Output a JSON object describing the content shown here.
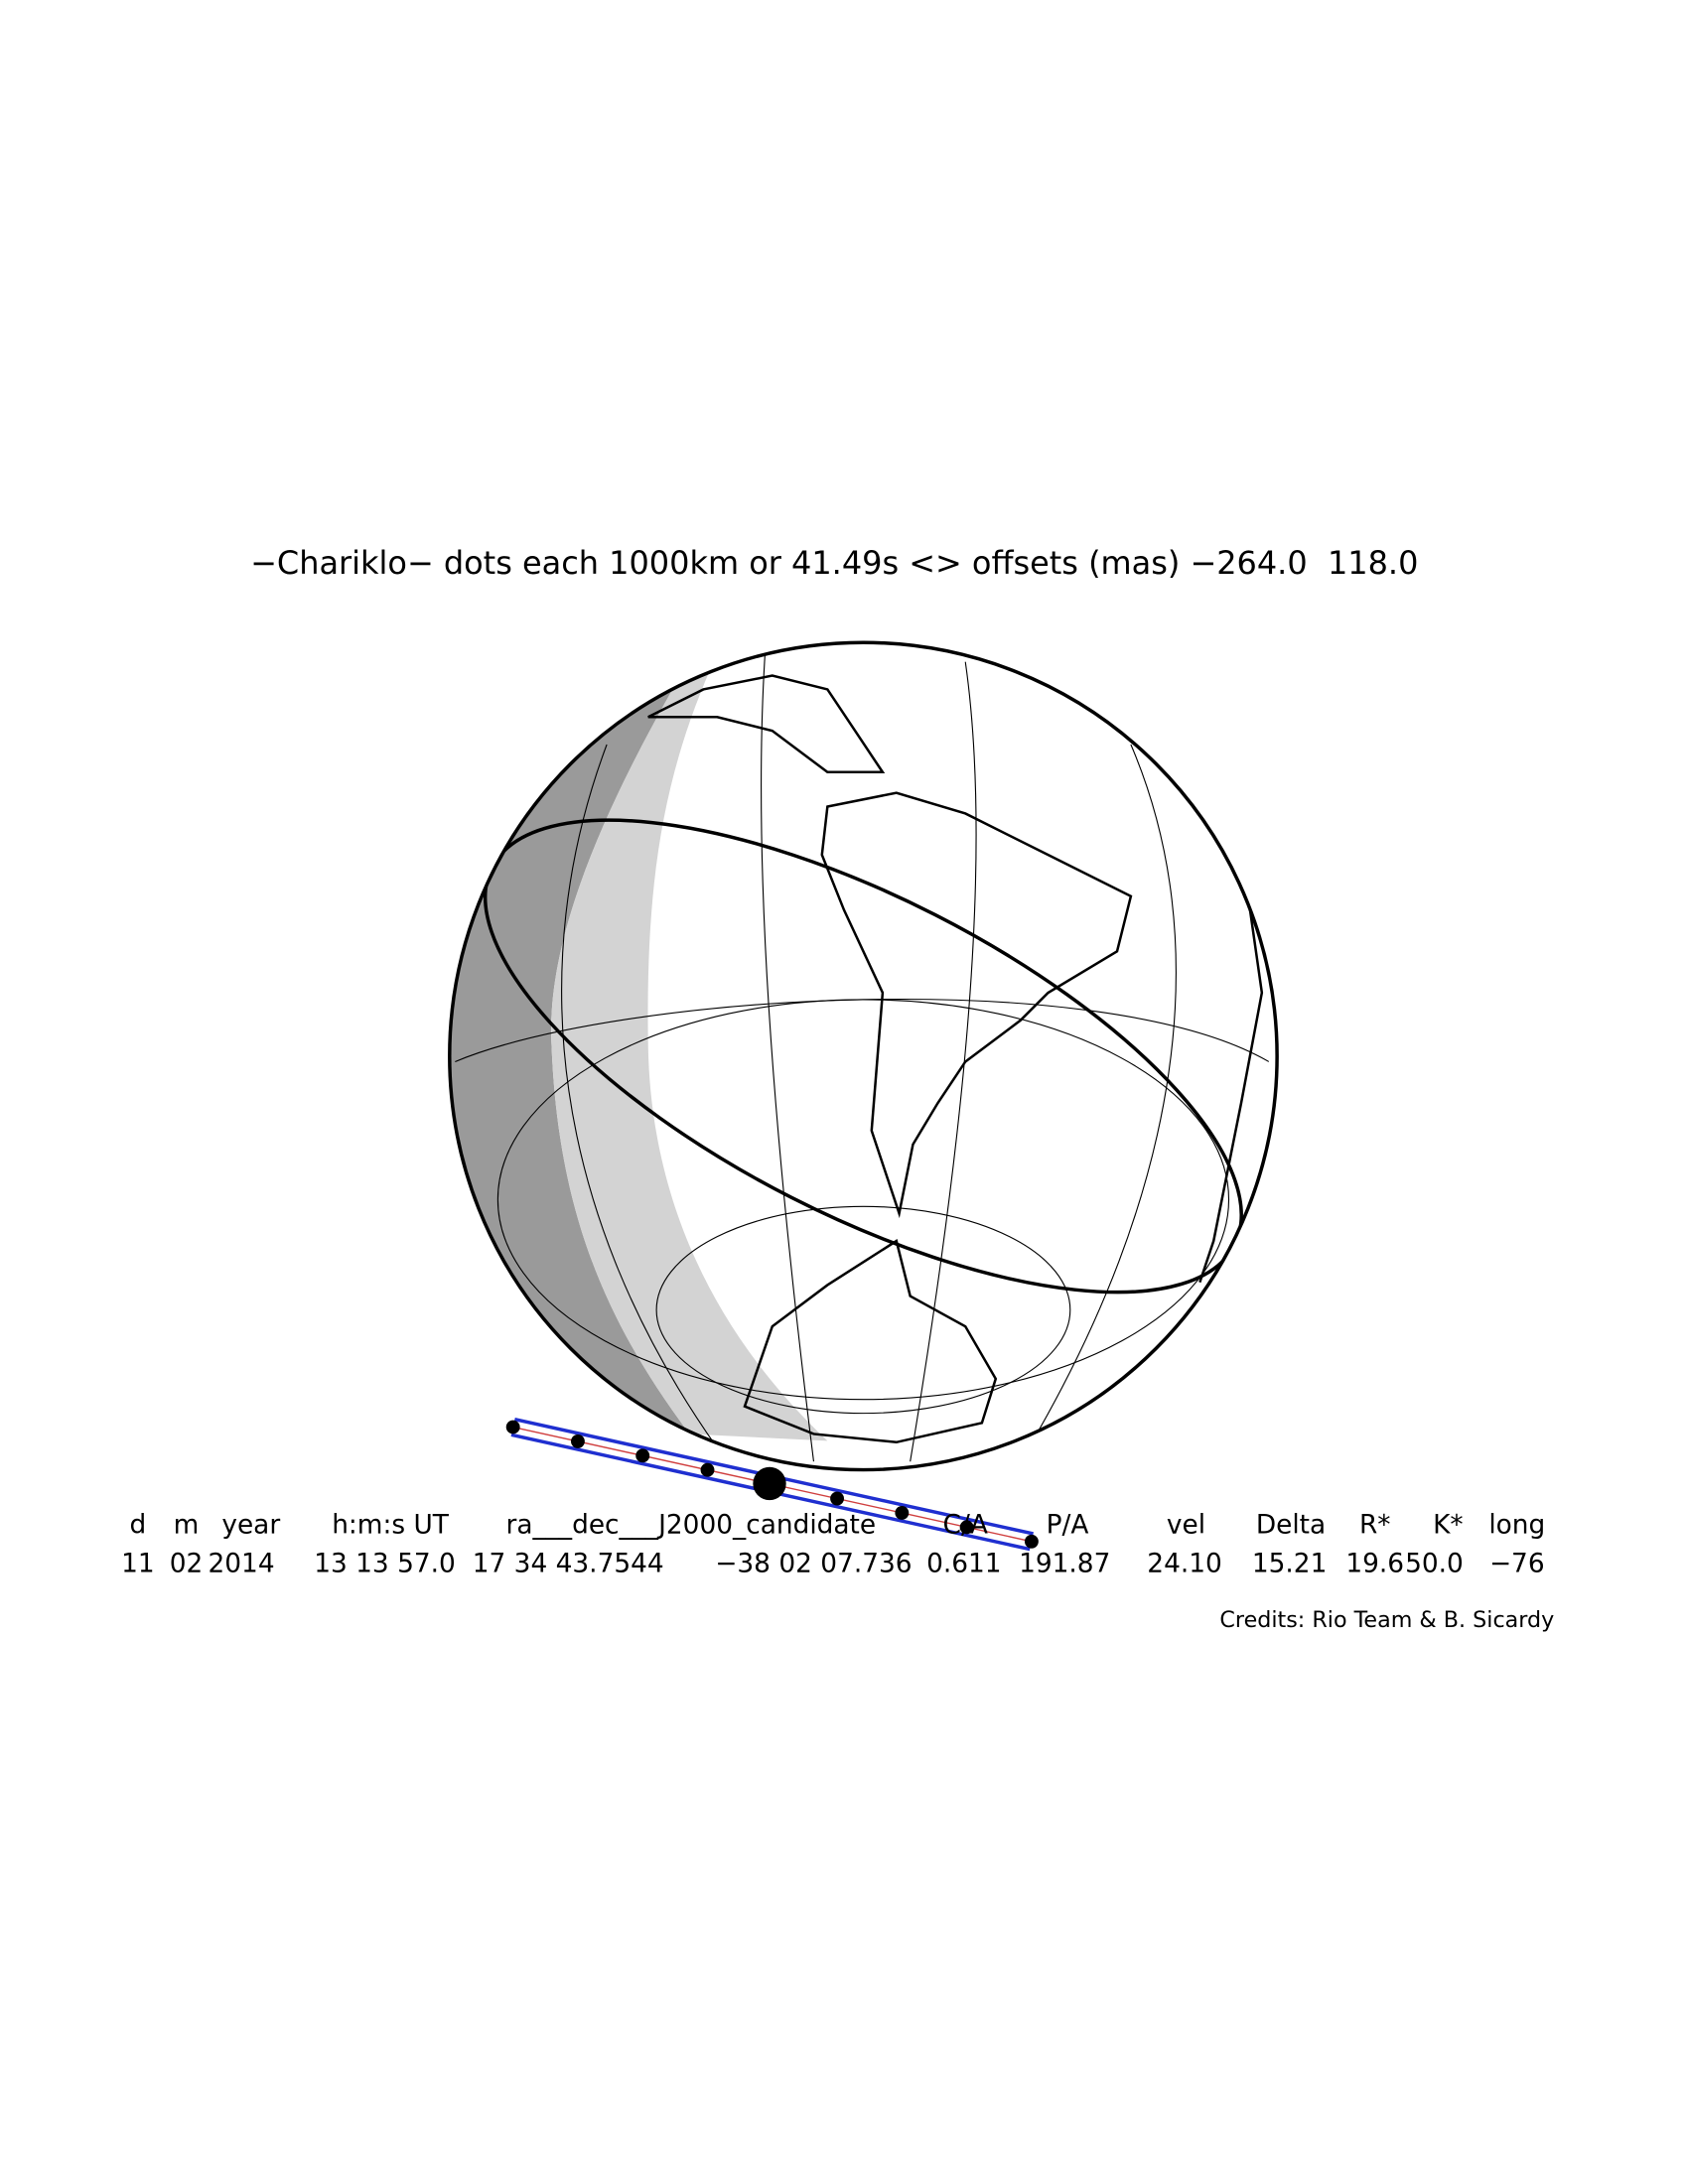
{
  "title": "−Chariklo− dots each 1000km or 41.49s <> offsets (mas) −264.0  118.0",
  "table": {
    "header": [
      "d",
      "m",
      "year",
      "h:m:s UT",
      "ra___dec___J2000_candidate",
      "C/A",
      "P/A",
      "vel",
      "Delta",
      "R*",
      "K*",
      "long"
    ],
    "values": [
      "11",
      "02",
      "2014",
      "13 13 57.0",
      "17 34 43.7544",
      "−38 02 07.736",
      "0.611",
      "191.87",
      "24.10",
      "15.21",
      "19.6",
      "50.0",
      "−76"
    ]
  },
  "credits": "Credits: Rio Team & B. Sicardy"
}
